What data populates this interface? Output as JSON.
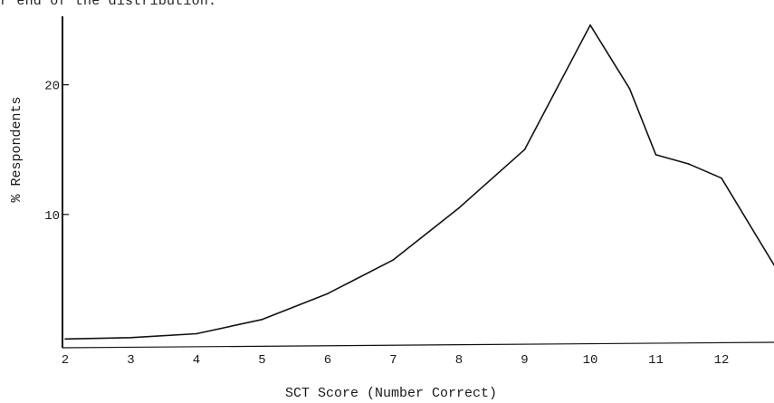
{
  "caption": "r end of the distribution.",
  "chart_data": {
    "type": "line",
    "title": "",
    "xlabel": "SCT Score (Number Correct)",
    "ylabel": "% Respondents",
    "x_ticks": [
      "2",
      "3",
      "4",
      "5",
      "6",
      "7",
      "8",
      "9",
      "10",
      "11",
      "12"
    ],
    "y_ticks": [
      "10",
      "20"
    ],
    "x_tick_values": [
      2,
      3,
      4,
      5,
      6,
      7,
      8,
      9,
      10,
      11,
      12
    ],
    "y_tick_values": [
      10,
      20
    ],
    "xlim": [
      2,
      12.8
    ],
    "ylim": [
      0,
      25
    ],
    "grid": false,
    "series": [
      {
        "name": "",
        "x": [
          2,
          3,
          4,
          5,
          6,
          7,
          8,
          9,
          10,
          10.6,
          11,
          11.5,
          12,
          12.8
        ],
        "y": [
          0.4,
          0.5,
          0.8,
          1.9,
          3.9,
          6.5,
          10.5,
          15,
          24.6,
          19.7,
          14.6,
          13.9,
          12.8,
          6.1
        ]
      }
    ],
    "baseline": {
      "x": [
        2,
        12.8
      ],
      "y": [
        0,
        0
      ]
    },
    "line_color": "#111111"
  }
}
